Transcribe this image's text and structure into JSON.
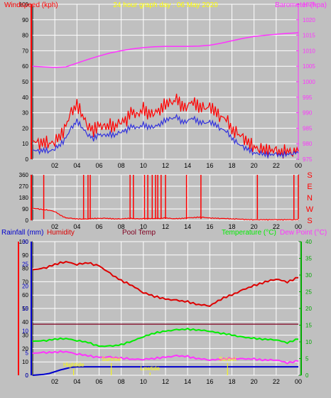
{
  "colors": {
    "bg": "#c0c0c0",
    "frame": "#000000",
    "grid": "#ffffff",
    "wind": "#ff0000",
    "windavg": "#3333dd",
    "baro": "#ff33ff",
    "dir": "#ff0000",
    "rain": "#0000cc",
    "humidity": "#dd0000",
    "pool": "#800020",
    "temp": "#00ee00",
    "dew": "#ff33ff",
    "yellow": "#ffff00",
    "leftaxis": "#ff0000",
    "tempaxis": "#00aa00"
  },
  "header": {
    "windspeed_label": "Windspeed (kph)",
    "title": "24 hour graph day : 06 May 2020",
    "barometer_label": "Barometer (hpa)"
  },
  "legend": {
    "rainfall": "Rainfall (mm)",
    "humidity": "Humidity",
    "pool": "Pool Temp",
    "temperature": "Temperature (°C)",
    "dewpoint": "Dew Point (°C)"
  },
  "annotations": {
    "hightide": "Hightide",
    "sunrise": "Sunrise",
    "lowtide": "Lowtide",
    "sunset": "Sunset"
  },
  "chart_data": [
    {
      "type": "line",
      "name": "wind-barometer",
      "x_ticks": [
        "02",
        "04",
        "06",
        "08",
        "10",
        "12",
        "14",
        "16",
        "18",
        "20",
        "22",
        "00"
      ],
      "y_left_ticks": [
        0,
        10,
        20,
        30,
        40,
        50,
        60,
        70,
        80,
        90,
        100
      ],
      "ylim_left": [
        0,
        100
      ],
      "y_right_ticks": [
        975,
        980,
        985,
        990,
        995,
        1000,
        1005,
        1010,
        1015,
        1020,
        1025
      ],
      "ylim_right": [
        975,
        1025
      ],
      "series": [
        {
          "name": "Windspeed (kph)",
          "hours": [
            0,
            0.5,
            1,
            1.5,
            2,
            2.5,
            3,
            3.5,
            4,
            4.5,
            5,
            5.5,
            6,
            6.5,
            7,
            7.5,
            8,
            8.5,
            9,
            9.5,
            10,
            10.5,
            11,
            11.5,
            12,
            12.5,
            13,
            13.5,
            14,
            14.5,
            15,
            15.5,
            16,
            16.5,
            17,
            17.5,
            18,
            18.5,
            19,
            19.5,
            20,
            20.5,
            21,
            21.5,
            22,
            22.5,
            23,
            23.5,
            24
          ],
          "values": [
            12,
            10,
            11,
            10,
            12,
            14,
            22,
            30,
            36,
            28,
            22,
            18,
            22,
            20,
            22,
            22,
            25,
            26,
            30,
            28,
            32,
            30,
            30,
            33,
            35,
            36,
            38,
            34,
            35,
            38,
            34,
            32,
            34,
            30,
            28,
            26,
            20,
            16,
            14,
            10,
            8,
            7,
            6,
            6,
            5,
            5,
            5,
            5,
            5
          ]
        },
        {
          "name": "Average windspeed",
          "hours": [
            0,
            0.5,
            1,
            1.5,
            2,
            2.5,
            3,
            3.5,
            4,
            4.5,
            5,
            5.5,
            6,
            6.5,
            7,
            7.5,
            8,
            8.5,
            9,
            9.5,
            10,
            10.5,
            11,
            11.5,
            12,
            12.5,
            13,
            13.5,
            14,
            14.5,
            15,
            15.5,
            16,
            16.5,
            17,
            17.5,
            18,
            18.5,
            19,
            19.5,
            20,
            20.5,
            21,
            21.5,
            22,
            22.5,
            23,
            23.5,
            24
          ],
          "values": [
            6,
            5,
            6,
            5,
            7,
            9,
            14,
            20,
            25,
            20,
            16,
            13,
            16,
            15,
            16,
            16,
            18,
            19,
            21,
            20,
            22,
            21,
            21,
            23,
            25,
            26,
            27,
            24,
            25,
            27,
            24,
            23,
            24,
            22,
            20,
            18,
            14,
            10,
            8,
            6,
            4,
            4,
            3,
            3,
            3,
            3,
            3,
            4,
            4
          ]
        },
        {
          "name": "Barometer (hpa)",
          "axis": "right",
          "hours": [
            0,
            1,
            2,
            3,
            4,
            5,
            6,
            7,
            8,
            9,
            10,
            11,
            12,
            13,
            14,
            15,
            16,
            17,
            18,
            19,
            20,
            21,
            22,
            23,
            24
          ],
          "values": [
            1005,
            1004.8,
            1004.6,
            1004.8,
            1006,
            1007.2,
            1008.3,
            1009.3,
            1010,
            1010.6,
            1011,
            1011.3,
            1011.4,
            1011.4,
            1011.4,
            1011.5,
            1011.8,
            1012.4,
            1013.2,
            1014,
            1014.6,
            1015,
            1015.3,
            1015.6,
            1015.8
          ]
        }
      ]
    },
    {
      "type": "scatter",
      "name": "wind-direction",
      "x_ticks": [
        "02",
        "04",
        "06",
        "08",
        "10",
        "12",
        "14",
        "16",
        "18",
        "20",
        "22",
        "00"
      ],
      "y_left_ticks": [
        0,
        90,
        180,
        270,
        360
      ],
      "ylim": [
        0,
        360
      ],
      "compass_labels": [
        "S",
        "E",
        "N",
        "W",
        "S"
      ],
      "series": [
        {
          "name": "Wind direction",
          "hours": [
            0,
            0.5,
            1,
            1.5,
            2,
            2.5,
            3,
            3.5,
            4,
            4.5,
            5,
            5.5,
            6,
            6.5,
            7,
            7.5,
            8,
            8.5,
            9,
            9.5,
            10,
            10.5,
            11,
            11.5,
            12,
            12.5,
            13,
            13.5,
            14,
            14.5,
            15,
            15.5,
            16,
            16.5,
            17,
            17.5,
            18,
            18.5,
            19,
            19.5,
            20,
            20.5,
            21,
            21.5,
            22,
            22.5,
            23,
            23.5,
            24
          ],
          "values": [
            95,
            90,
            85,
            80,
            70,
            40,
            20,
            15,
            12,
            10,
            12,
            14,
            15,
            16,
            14,
            12,
            12,
            15,
            14,
            12,
            12,
            14,
            15,
            16,
            18,
            14,
            12,
            15,
            20,
            22,
            25,
            22,
            18,
            16,
            15,
            14,
            12,
            10,
            8,
            5,
            5,
            5,
            5,
            5,
            5,
            5,
            5,
            5,
            5
          ]
        }
      ],
      "direction_spikes_hours": [
        1,
        4.6,
        5,
        5.2,
        8.8,
        9.1,
        10.1,
        10.4,
        10.8,
        11.1,
        11.3,
        11.6,
        12,
        13.9,
        15.2,
        20.3,
        23.6,
        24
      ]
    },
    {
      "type": "line",
      "name": "rain-humidity-temperature",
      "x_ticks": [
        "02",
        "04",
        "06",
        "08",
        "10",
        "12",
        "14",
        "16",
        "18",
        "20",
        "22",
        "00"
      ],
      "y_left_ticks": [
        0,
        10,
        20,
        30,
        40,
        50,
        60,
        70,
        80,
        90,
        100
      ],
      "ylim_left": [
        0,
        100
      ],
      "y_rain_ticks": [
        0,
        5,
        10,
        15,
        20,
        25,
        30
      ],
      "ylim_rain": [
        0,
        30
      ],
      "y_right_ticks": [
        0,
        5,
        10,
        15,
        20,
        25,
        30,
        35,
        40
      ],
      "ylim_right": [
        0,
        40
      ],
      "series": [
        {
          "name": "Humidity",
          "axis": "left",
          "hours": [
            0,
            1,
            2,
            3,
            4,
            5,
            6,
            7,
            8,
            9,
            10,
            11,
            12,
            13,
            14,
            15,
            16,
            17,
            18,
            19,
            20,
            21,
            22,
            23,
            24
          ],
          "values": [
            79,
            80,
            83,
            85,
            83,
            84,
            82,
            76,
            71,
            67,
            62,
            59,
            57,
            56,
            55,
            53,
            52,
            57,
            60,
            64,
            67,
            70,
            72,
            70,
            73
          ]
        },
        {
          "name": "Pool Temp",
          "axis": "right",
          "hours": [
            0,
            4,
            8,
            12,
            16,
            20,
            24
          ],
          "values": [
            15.3,
            15.3,
            15.3,
            15.3,
            15.3,
            15.3,
            15.3
          ]
        },
        {
          "name": "Temperature (°C)",
          "axis": "right",
          "hours": [
            0,
            1,
            2,
            3,
            4,
            5,
            6,
            7,
            8,
            9,
            10,
            11,
            12,
            13,
            14,
            15,
            16,
            17,
            18,
            19,
            20,
            21,
            22,
            23,
            24
          ],
          "values": [
            10.2,
            10.3,
            10.8,
            11,
            10.4,
            9.8,
            8.7,
            8.7,
            9.2,
            10.2,
            11.6,
            12.6,
            13.2,
            13.6,
            13.8,
            13.6,
            13.2,
            12.6,
            12,
            11.4,
            11,
            10.8,
            10.6,
            9.8,
            10.8
          ]
        },
        {
          "name": "Dew Point (°C)",
          "axis": "right",
          "hours": [
            0,
            1,
            2,
            3,
            4,
            5,
            6,
            7,
            8,
            9,
            10,
            11,
            12,
            13,
            14,
            15,
            16,
            17,
            18,
            19,
            20,
            21,
            22,
            23,
            24
          ],
          "values": [
            6.6,
            6.8,
            6.9,
            7.1,
            6.4,
            5.8,
            5.4,
            5.4,
            5.2,
            4.8,
            4.8,
            5,
            5.4,
            5.8,
            5.6,
            5,
            4.6,
            4.8,
            5,
            4.9,
            4.8,
            4.6,
            4.6,
            3.8,
            4.2
          ]
        },
        {
          "name": "Rainfall (mm)",
          "axis": "rain",
          "hours": [
            0,
            1,
            1.5,
            2,
            2.5,
            3,
            3.5,
            4,
            8,
            12,
            16,
            20,
            23,
            24
          ],
          "values": [
            0,
            0.2,
            0.4,
            0.8,
            1.2,
            1.5,
            1.8,
            1.9,
            1.9,
            1.9,
            1.9,
            1.9,
            1.9,
            1.9
          ]
        }
      ]
    }
  ]
}
